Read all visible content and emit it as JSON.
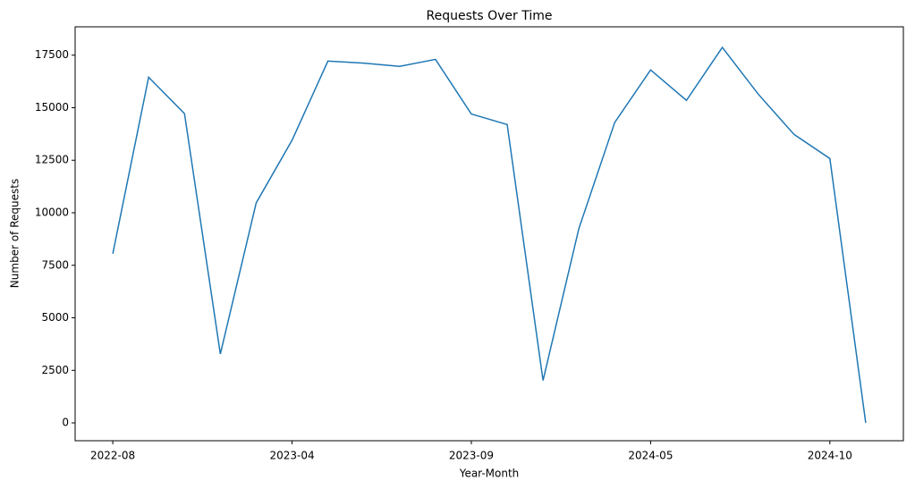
{
  "chart_data": {
    "type": "line",
    "title": "Requests Over Time",
    "x_label": "Year-Month",
    "y_label": "Number of Requests",
    "categories": [
      "2022-08",
      null,
      null,
      null,
      null,
      "2023-04",
      null,
      null,
      null,
      null,
      "2023-09",
      null,
      null,
      null,
      null,
      "2024-05",
      null,
      null,
      null,
      null,
      "2024-10",
      null
    ],
    "series": [
      {
        "name": "Requests",
        "color": "#1f77b4",
        "values": [
          8050,
          16450,
          14720,
          3280,
          10470,
          13450,
          17220,
          17120,
          16970,
          17300,
          14700,
          14200,
          2020,
          9250,
          14300,
          16800,
          15350,
          17870,
          15650,
          13730,
          12580,
          0
        ]
      }
    ],
    "ylim": [
      -850,
      18850
    ],
    "yticks": [
      0,
      2500,
      5000,
      7500,
      10000,
      12500,
      15000,
      17500
    ],
    "grid": false
  }
}
